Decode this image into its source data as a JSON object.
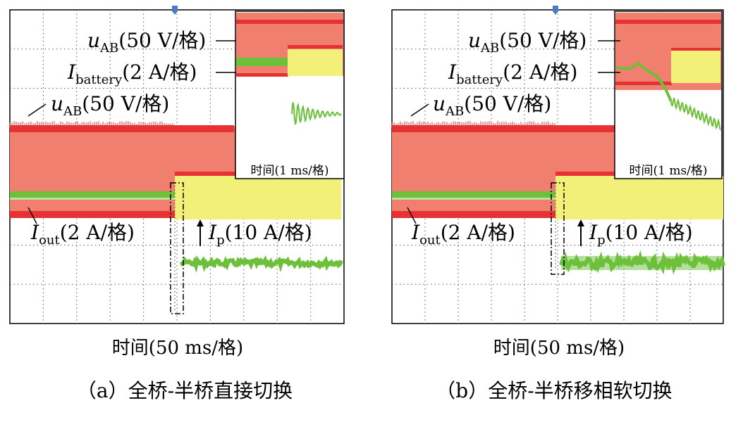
{
  "figure": {
    "panels": [
      {
        "id": "a",
        "caption": "（a）全桥-半桥直接切换",
        "xlabel": "时间(50 ms/格)",
        "inset_xlabel": "时间(1 ms/格)",
        "annotations": {
          "uab_inset": {
            "sym": "u",
            "sub": "AB",
            "rest": "(50 V/格)"
          },
          "ibat_inset": {
            "sym": "I",
            "sub": "battery",
            "rest": "(2 A/格)"
          },
          "uab_main": {
            "sym": "u",
            "sub": "AB",
            "rest": "(50 V/格)"
          },
          "iout": {
            "sym": "I",
            "sub": "out",
            "rest": "(2 A/格)"
          },
          "ip": {
            "sym": "I",
            "sub": "p",
            "rest": "(10 A/格)"
          }
        }
      },
      {
        "id": "b",
        "caption": "（b）全桥-半桥移相软切换",
        "xlabel": "时间(50 ms/格)",
        "inset_xlabel": "时间(1 ms/格)",
        "annotations": {
          "uab_inset": {
            "sym": "u",
            "sub": "AB",
            "rest": "(50 V/格)"
          },
          "ibat_inset": {
            "sym": "I",
            "sub": "battery",
            "rest": "(2 A/格)"
          },
          "uab_main": {
            "sym": "u",
            "sub": "AB",
            "rest": "(50 V/格)"
          },
          "iout": {
            "sym": "I",
            "sub": "out",
            "rest": "(2 A/格)"
          },
          "ip": {
            "sym": "I",
            "sub": "p",
            "rest": "(10 A/格)"
          }
        }
      }
    ]
  },
  "chart_data": [
    {
      "type": "line",
      "panel": "a",
      "xlabel": "时间(50 ms/格)",
      "x_divisions": 10,
      "y_divisions": 8,
      "grid": true,
      "switch_division": 5,
      "transition": "direct",
      "series": [
        {
          "name": "uAB",
          "unit": "50 V/格",
          "color": "#e33a3a",
          "before": "full-bridge",
          "after": "half-bridge"
        },
        {
          "name": "Iout",
          "unit": "2 A/格",
          "color": "#76c043"
        },
        {
          "name": "Ip",
          "unit": "10 A/格",
          "color": "#76c043"
        },
        {
          "name": "Ibattery",
          "unit": "2 A/格",
          "color": "#76c043"
        }
      ],
      "colors": {
        "uab": "#e63232",
        "uab_fill": "#f07f70",
        "current": "#6cc03a",
        "yellow": "#f3f07a"
      }
    },
    {
      "type": "line",
      "panel": "b",
      "xlabel": "时间(50 ms/格)",
      "x_divisions": 10,
      "y_divisions": 8,
      "grid": true,
      "switch_division": 5,
      "transition": "phase-shift soft",
      "series": [
        {
          "name": "uAB",
          "unit": "50 V/格",
          "color": "#e33a3a",
          "before": "full-bridge",
          "after": "half-bridge"
        },
        {
          "name": "Iout",
          "unit": "2 A/格",
          "color": "#76c043"
        },
        {
          "name": "Ip",
          "unit": "10 A/格",
          "color": "#76c043"
        },
        {
          "name": "Ibattery",
          "unit": "2 A/格",
          "color": "#76c043"
        }
      ],
      "colors": {
        "uab": "#e63232",
        "uab_fill": "#f07f70",
        "current": "#6cc03a",
        "yellow": "#f3f07a"
      }
    }
  ]
}
